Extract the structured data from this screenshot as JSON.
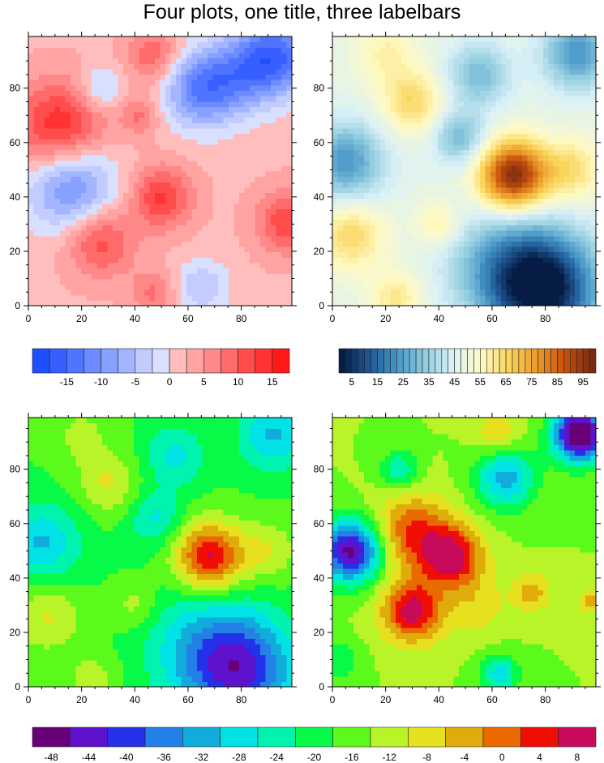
{
  "title": "Four plots, one title, three labelbars",
  "chart_data": [
    {
      "type": "heatmap",
      "name": "top-left",
      "xlim": [
        0,
        99
      ],
      "ylim": [
        0,
        99
      ],
      "xticks": [
        0,
        20,
        40,
        60,
        80
      ],
      "yticks": [
        0,
        20,
        40,
        60,
        80
      ],
      "field": {
        "base": 2,
        "bumps": [
          [
            12,
            65,
            14,
            12
          ],
          [
            27,
            24,
            10,
            9
          ],
          [
            50,
            40,
            11,
            8
          ],
          [
            97,
            31,
            10,
            8
          ],
          [
            47,
            92,
            8,
            7
          ],
          [
            47,
            5,
            6,
            6
          ],
          [
            42,
            70,
            6,
            5
          ],
          [
            16,
            45,
            -14,
            12
          ],
          [
            27,
            80,
            -7,
            6
          ],
          [
            65,
            80,
            -14,
            10
          ],
          [
            93,
            92,
            -16,
            10
          ],
          [
            80,
            85,
            -8,
            10
          ],
          [
            65,
            7,
            -7,
            7
          ]
        ]
      },
      "colorbar": 0
    },
    {
      "type": "heatmap",
      "name": "top-right",
      "xlim": [
        0,
        99
      ],
      "ylim": [
        0,
        99
      ],
      "xticks": [
        0,
        20,
        40,
        60,
        80
      ],
      "yticks": [
        0,
        20,
        40,
        60,
        80
      ],
      "field": {
        "base": 48,
        "bumps": [
          [
            68,
            48,
            50,
            9
          ],
          [
            90,
            50,
            15,
            8
          ],
          [
            30,
            75,
            17,
            8
          ],
          [
            7,
            26,
            17,
            9
          ],
          [
            24,
            3,
            13,
            7
          ],
          [
            40,
            30,
            12,
            6
          ],
          [
            20,
            93,
            10,
            8
          ],
          [
            80,
            6,
            -45,
            14
          ],
          [
            5,
            53,
            -25,
            10
          ],
          [
            48,
            62,
            -18,
            7
          ],
          [
            55,
            85,
            -18,
            8
          ],
          [
            92,
            93,
            -25,
            9
          ],
          [
            65,
            15,
            -20,
            15
          ]
        ]
      },
      "colorbar": 1
    },
    {
      "type": "heatmap",
      "name": "bottom-left",
      "xlim": [
        0,
        99
      ],
      "ylim": [
        0,
        99
      ],
      "xticks": [
        0,
        20,
        40,
        60,
        80
      ],
      "yticks": [
        0,
        20,
        40,
        60,
        80
      ],
      "field": {
        "base": -18,
        "bumps": [
          [
            68,
            48,
            25,
            9
          ],
          [
            90,
            50,
            7.5,
            8
          ],
          [
            30,
            75,
            8.5,
            8
          ],
          [
            7,
            26,
            8.5,
            9
          ],
          [
            24,
            3,
            6.5,
            7
          ],
          [
            40,
            30,
            6,
            6
          ],
          [
            20,
            93,
            5,
            8
          ],
          [
            80,
            6,
            -22.5,
            14
          ],
          [
            5,
            53,
            -12.5,
            10
          ],
          [
            48,
            62,
            -9,
            7
          ],
          [
            55,
            85,
            -9,
            8
          ],
          [
            92,
            93,
            -12.5,
            9
          ],
          [
            65,
            15,
            -10,
            15
          ]
        ]
      },
      "colorbar": 2
    },
    {
      "type": "heatmap",
      "name": "bottom-right",
      "xlim": [
        0,
        99
      ],
      "ylim": [
        0,
        99
      ],
      "xticks": [
        0,
        20,
        40,
        60,
        80
      ],
      "yticks": [
        0,
        20,
        40,
        60,
        80
      ],
      "field": {
        "base": -14,
        "bumps": [
          [
            30,
            28,
            22,
            8
          ],
          [
            45,
            48,
            22,
            8
          ],
          [
            30,
            57,
            16,
            10
          ],
          [
            75,
            35,
            10,
            5
          ],
          [
            97,
            31,
            10,
            3
          ],
          [
            62,
            93,
            8,
            6
          ],
          [
            55,
            30,
            6,
            8
          ],
          [
            7,
            50,
            -34,
            8
          ],
          [
            93,
            93,
            -40,
            7
          ],
          [
            65,
            77,
            -18,
            8
          ],
          [
            25,
            80,
            -12,
            5
          ],
          [
            63,
            5,
            -14,
            5
          ],
          [
            3,
            10,
            -8,
            5
          ]
        ]
      },
      "colorbar": 2
    }
  ],
  "colorbars": [
    {
      "levels_start": -17.5,
      "levels_step": 2.5,
      "colors": [
        "#1f4fff",
        "#375fff",
        "#4f74ff",
        "#6b8bff",
        "#87a1ff",
        "#a3b5ff",
        "#c2ccff",
        "#d9dfff",
        "#ffbdbd",
        "#ffa3a3",
        "#ff8888",
        "#ff6b6b",
        "#ff4d4d",
        "#ff3333",
        "#ff1a1a"
      ],
      "labels": [
        "-15",
        "-10",
        "-5",
        "0",
        "5",
        "10",
        "15"
      ],
      "label_values": [
        -15,
        -10,
        -5,
        0,
        5,
        10,
        15
      ]
    },
    {
      "levels_start": 2.5,
      "levels_step": 2.5,
      "ncolors": 40,
      "color_stops": [
        "#061c44",
        "#1e5a96",
        "#4a98c8",
        "#93cde0",
        "#dcf1f7",
        "#fffbc4",
        "#f9d55c",
        "#ec9a2a",
        "#c5500c",
        "#7a2a12"
      ],
      "labels": [
        "5",
        "15",
        "25",
        "35",
        "45",
        "55",
        "65",
        "75",
        "85",
        "95"
      ],
      "label_values": [
        5,
        15,
        25,
        35,
        45,
        55,
        65,
        75,
        85,
        95
      ]
    },
    {
      "levels_start": -46,
      "levels_step": 4,
      "colors": [
        "#680078",
        "#5e12cc",
        "#2530ea",
        "#2280e6",
        "#12acdc",
        "#00e2e6",
        "#00f4b0",
        "#08fa48",
        "#5cfa1c",
        "#b8f428",
        "#e6e01e",
        "#e0ac0c",
        "#e86a00",
        "#f00e04",
        "#c80a5a"
      ],
      "labels": [
        "-48",
        "-44",
        "-40",
        "-36",
        "-32",
        "-28",
        "-24",
        "-20",
        "-16",
        "-12",
        "-8",
        "-4",
        "0",
        "4",
        "8"
      ],
      "label_values": [
        -48,
        -44,
        -40,
        -36,
        -32,
        -28,
        -24,
        -20,
        -16,
        -12,
        -8,
        -4,
        0,
        4,
        8
      ],
      "label_mode": "box-center"
    }
  ]
}
